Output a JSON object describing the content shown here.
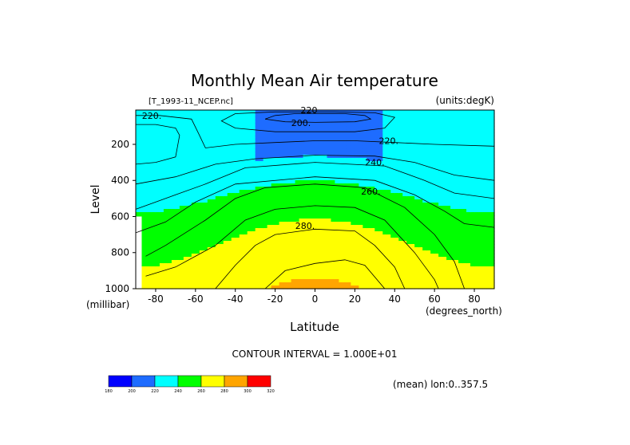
{
  "chart_data": {
    "type": "contour",
    "title": "Monthly Mean Air temperature",
    "dataset_label": "[T_1993-11_NCEP.nc]",
    "units_label": "(units:degK)",
    "xlabel": "Latitude",
    "ylabel": "Level",
    "x_units": "(degrees_north)",
    "y_units": "(millibar)",
    "xlim": [
      -90,
      90
    ],
    "ylim": [
      1000,
      10
    ],
    "y_inverted": true,
    "x_ticks": [
      "-80",
      "-60",
      "-40",
      "-20",
      "0",
      "20",
      "40",
      "60",
      "80"
    ],
    "y_ticks": [
      "200",
      "400",
      "600",
      "800",
      "1000"
    ],
    "contour_interval_text": "CONTOUR INTERVAL = 1.000E+01",
    "footer_text": "(mean) lon:0..357.5",
    "contour_labels": [
      {
        "text": "220",
        "lat": -3,
        "lev": 10
      },
      {
        "text": "220.",
        "lat": -82,
        "lev": 40
      },
      {
        "text": "200.",
        "lat": -7,
        "lev": 80
      },
      {
        "text": "220.",
        "lat": 37,
        "lev": 180
      },
      {
        "text": "240.",
        "lat": 30,
        "lev": 300
      },
      {
        "text": "260.",
        "lat": 28,
        "lev": 460
      },
      {
        "text": "280.",
        "lat": -5,
        "lev": 650
      }
    ],
    "colorbar": {
      "levels": [
        "180",
        "200",
        "220",
        "240",
        "260",
        "280",
        "300",
        "320"
      ],
      "colors": [
        "#0000ff",
        "#1e6cff",
        "#00ffff",
        "#00ff00",
        "#ffff00",
        "#ffa500",
        "#ff0000"
      ]
    },
    "fill_bands": [
      {
        "from": 180,
        "to": 200,
        "color": "#0000ff"
      },
      {
        "from": 200,
        "to": 220,
        "color": "#1e6cff"
      },
      {
        "from": 220,
        "to": 240,
        "color": "#00ffff"
      },
      {
        "from": 240,
        "to": 260,
        "color": "#00ff00"
      },
      {
        "from": 260,
        "to": 280,
        "color": "#ffff00"
      },
      {
        "from": 280,
        "to": 300,
        "color": "#ffa500"
      }
    ],
    "contour_lines": [
      {
        "level": 220,
        "points": [
          [
            -90,
            10
          ],
          [
            -60,
            10
          ],
          [
            -40,
            10
          ],
          [
            -20,
            10
          ],
          [
            0,
            10
          ],
          [
            20,
            10
          ],
          [
            40,
            10
          ],
          [
            60,
            10
          ],
          [
            90,
            10
          ]
        ]
      },
      {
        "level": 200,
        "points": [
          [
            -20,
            40
          ],
          [
            -10,
            30
          ],
          [
            0,
            30
          ],
          [
            15,
            30
          ],
          [
            25,
            40
          ],
          [
            28,
            60
          ],
          [
            20,
            75
          ],
          [
            0,
            78
          ],
          [
            -15,
            75
          ],
          [
            -25,
            60
          ],
          [
            -20,
            40
          ]
        ]
      },
      {
        "level": 220,
        "points": [
          [
            -40,
            30
          ],
          [
            -20,
            20
          ],
          [
            10,
            20
          ],
          [
            30,
            25
          ],
          [
            40,
            50
          ],
          [
            35,
            110
          ],
          [
            20,
            130
          ],
          [
            0,
            130
          ],
          [
            -20,
            130
          ],
          [
            -40,
            110
          ],
          [
            -47,
            70
          ],
          [
            -40,
            30
          ]
        ]
      },
      {
        "level": 220,
        "points": [
          [
            -90,
            90
          ],
          [
            -80,
            90
          ],
          [
            -70,
            110
          ],
          [
            -68,
            150
          ],
          [
            -70,
            270
          ],
          [
            -80,
            300
          ],
          [
            -90,
            310
          ]
        ]
      },
      {
        "level": 220,
        "points": [
          [
            -90,
            40
          ],
          [
            -78,
            40
          ],
          [
            -62,
            60
          ],
          [
            -58,
            150
          ],
          [
            -55,
            220
          ],
          [
            -40,
            200
          ],
          [
            -20,
            190
          ],
          [
            0,
            180
          ],
          [
            20,
            180
          ],
          [
            40,
            190
          ],
          [
            60,
            200
          ],
          [
            90,
            210
          ]
        ]
      },
      {
        "level": 230,
        "points": [
          [
            -90,
            420
          ],
          [
            -70,
            380
          ],
          [
            -50,
            310
          ],
          [
            -30,
            280
          ],
          [
            0,
            260
          ],
          [
            30,
            265
          ],
          [
            50,
            300
          ],
          [
            70,
            370
          ],
          [
            90,
            400
          ]
        ]
      },
      {
        "level": 240,
        "points": [
          [
            -90,
            560
          ],
          [
            -70,
            480
          ],
          [
            -55,
            420
          ],
          [
            -35,
            330
          ],
          [
            0,
            300
          ],
          [
            35,
            320
          ],
          [
            55,
            400
          ],
          [
            70,
            470
          ],
          [
            90,
            500
          ]
        ]
      },
      {
        "level": 250,
        "points": [
          [
            -90,
            690
          ],
          [
            -75,
            630
          ],
          [
            -60,
            520
          ],
          [
            -40,
            420
          ],
          [
            0,
            380
          ],
          [
            30,
            400
          ],
          [
            50,
            480
          ],
          [
            65,
            570
          ],
          [
            75,
            640
          ],
          [
            90,
            660
          ]
        ]
      },
      {
        "level": 260,
        "points": [
          [
            -85,
            820
          ],
          [
            -75,
            760
          ],
          [
            -55,
            620
          ],
          [
            -40,
            500
          ],
          [
            -25,
            440
          ],
          [
            0,
            420
          ],
          [
            25,
            440
          ],
          [
            45,
            550
          ],
          [
            60,
            700
          ],
          [
            70,
            850
          ],
          [
            75,
            1000
          ]
        ]
      },
      {
        "level": 270,
        "points": [
          [
            -85,
            930
          ],
          [
            -70,
            880
          ],
          [
            -50,
            760
          ],
          [
            -35,
            620
          ],
          [
            -20,
            560
          ],
          [
            0,
            540
          ],
          [
            20,
            550
          ],
          [
            35,
            620
          ],
          [
            50,
            800
          ],
          [
            60,
            950
          ],
          [
            62,
            1000
          ]
        ]
      },
      {
        "level": 280,
        "points": [
          [
            -50,
            1000
          ],
          [
            -40,
            870
          ],
          [
            -30,
            760
          ],
          [
            -20,
            700
          ],
          [
            0,
            670
          ],
          [
            20,
            680
          ],
          [
            30,
            760
          ],
          [
            40,
            880
          ],
          [
            45,
            1000
          ]
        ]
      },
      {
        "level": 290,
        "points": [
          [
            -25,
            1000
          ],
          [
            -15,
            900
          ],
          [
            0,
            860
          ],
          [
            15,
            840
          ],
          [
            25,
            870
          ],
          [
            35,
            1000
          ]
        ]
      }
    ]
  }
}
